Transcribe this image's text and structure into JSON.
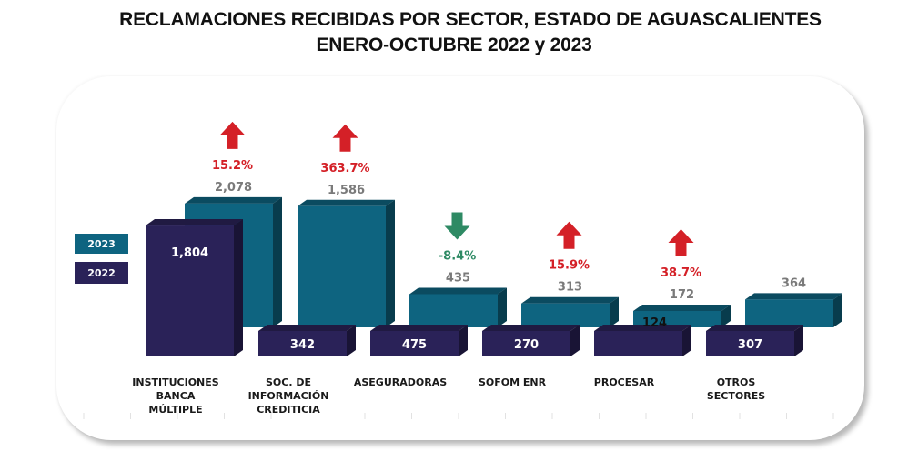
{
  "chart_data": {
    "type": "bar",
    "title": "RECLAMACIONES RECIBIDAS POR SECTOR, ESTADO DE AGUASCALIENTES",
    "subtitle": "ENERO-OCTUBRE 2022 y 2023",
    "xlabel": "",
    "ylabel": "",
    "ylim": [
      0,
      2200
    ],
    "grid": false,
    "legend_position": "left",
    "categories": [
      [
        "INSTITUCIONES",
        "BANCA",
        "MÚLTIPLE"
      ],
      [
        "SOC. DE",
        "INFORMACIÓN",
        "CREDITICIA"
      ],
      [
        "ASEGURADORAS"
      ],
      [
        "SOFOM ENR"
      ],
      [
        "PROCESAR"
      ],
      [
        "OTROS",
        "SECTORES"
      ]
    ],
    "series": [
      {
        "name": "2023",
        "color": "#0e6480",
        "values": [
          2078,
          1586,
          435,
          313,
          172,
          364
        ],
        "labels": [
          "2,078",
          "1,586",
          "435",
          "313",
          "172",
          "364"
        ]
      },
      {
        "name": "2022",
        "color": "#2a2258",
        "values": [
          1804,
          342,
          475,
          270,
          124,
          307
        ],
        "labels": [
          "1,804",
          "342",
          "475",
          "270",
          "124",
          "307"
        ]
      }
    ],
    "changes": [
      {
        "label": "15.2%",
        "direction": "up"
      },
      {
        "label": "363.7%",
        "direction": "up"
      },
      {
        "label": "-8.4%",
        "direction": "down"
      },
      {
        "label": "15.9%",
        "direction": "up"
      },
      {
        "label": "38.7%",
        "direction": "up"
      },
      {
        "label": "",
        "direction": "none"
      }
    ],
    "colors": {
      "up": "#d42027",
      "down": "#2e8a64",
      "label_gray": "#7a7a7a"
    }
  }
}
